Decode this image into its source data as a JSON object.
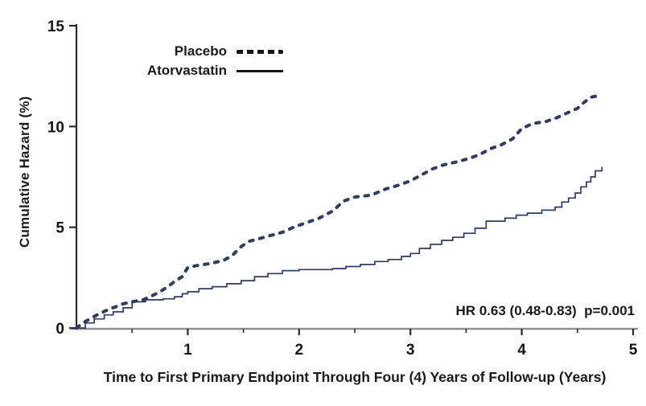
{
  "figure": {
    "y_axis_label": "Cumulative Hazard (%)",
    "x_axis_label": "Time to First Primary Endpoint Through Four (4) Years of Follow-up (Years)",
    "annotation": "HR 0.63 (0.48-0.83)  p=0.001",
    "legend": [
      {
        "label": "Placebo",
        "style": "dashed"
      },
      {
        "label": "Atorvastatin",
        "style": "solid"
      }
    ],
    "colors": {
      "curve": "#2e3c63",
      "axis": "#2b2b2b",
      "baseline": "#8f8f8f",
      "text": "#1a1a1a",
      "legend_swatch": "#141414"
    }
  },
  "chart_data": {
    "type": "line",
    "title": "",
    "xlabel": "Time to First Primary Endpoint Through Four (4) Years of Follow-up (Years)",
    "ylabel": "Cumulative Hazard (%)",
    "xlim": [
      0,
      5
    ],
    "ylim": [
      0,
      15
    ],
    "x_ticks": [
      1,
      2,
      3,
      4,
      5
    ],
    "x_minor_ticks": [
      0.5,
      1.5,
      2.5,
      3.5,
      4.5
    ],
    "y_ticks": [
      0,
      5,
      10,
      15
    ],
    "grid": false,
    "legend_position": "top-left-inside",
    "annotation": "HR 0.63 (0.48-0.83)  p=0.001",
    "series": [
      {
        "name": "Placebo",
        "line": "dashed",
        "step": false,
        "points": [
          [
            0,
            0
          ],
          [
            0.06,
            0.25
          ],
          [
            0.12,
            0.45
          ],
          [
            0.2,
            0.7
          ],
          [
            0.28,
            0.9
          ],
          [
            0.35,
            1.05
          ],
          [
            0.42,
            1.2
          ],
          [
            0.5,
            1.3
          ],
          [
            0.6,
            1.4
          ],
          [
            0.68,
            1.6
          ],
          [
            0.75,
            1.8
          ],
          [
            0.82,
            2.05
          ],
          [
            0.88,
            2.3
          ],
          [
            0.95,
            2.55
          ],
          [
            1.0,
            3.0
          ],
          [
            1.08,
            3.1
          ],
          [
            1.2,
            3.2
          ],
          [
            1.32,
            3.35
          ],
          [
            1.4,
            3.6
          ],
          [
            1.47,
            4.0
          ],
          [
            1.55,
            4.3
          ],
          [
            1.65,
            4.45
          ],
          [
            1.75,
            4.6
          ],
          [
            1.85,
            4.75
          ],
          [
            1.95,
            5.0
          ],
          [
            2.05,
            5.2
          ],
          [
            2.18,
            5.45
          ],
          [
            2.3,
            5.8
          ],
          [
            2.4,
            6.3
          ],
          [
            2.5,
            6.5
          ],
          [
            2.65,
            6.6
          ],
          [
            2.78,
            6.9
          ],
          [
            2.9,
            7.1
          ],
          [
            3.0,
            7.3
          ],
          [
            3.1,
            7.6
          ],
          [
            3.2,
            7.9
          ],
          [
            3.3,
            8.1
          ],
          [
            3.42,
            8.25
          ],
          [
            3.52,
            8.4
          ],
          [
            3.62,
            8.6
          ],
          [
            3.72,
            8.9
          ],
          [
            3.82,
            9.1
          ],
          [
            3.92,
            9.4
          ],
          [
            4.0,
            9.9
          ],
          [
            4.1,
            10.15
          ],
          [
            4.22,
            10.25
          ],
          [
            4.32,
            10.45
          ],
          [
            4.42,
            10.7
          ],
          [
            4.5,
            10.9
          ],
          [
            4.56,
            11.2
          ],
          [
            4.62,
            11.45
          ],
          [
            4.7,
            11.55
          ]
        ]
      },
      {
        "name": "Atorvastatin",
        "line": "solid",
        "step": true,
        "points": [
          [
            0,
            0
          ],
          [
            0.08,
            0.25
          ],
          [
            0.16,
            0.45
          ],
          [
            0.25,
            0.65
          ],
          [
            0.33,
            0.8
          ],
          [
            0.42,
            1.0
          ],
          [
            0.5,
            1.3
          ],
          [
            0.62,
            1.4
          ],
          [
            0.78,
            1.45
          ],
          [
            0.88,
            1.55
          ],
          [
            0.95,
            1.7
          ],
          [
            1.0,
            1.8
          ],
          [
            1.1,
            1.95
          ],
          [
            1.22,
            2.05
          ],
          [
            1.35,
            2.2
          ],
          [
            1.48,
            2.35
          ],
          [
            1.6,
            2.55
          ],
          [
            1.72,
            2.7
          ],
          [
            1.85,
            2.85
          ],
          [
            2.0,
            2.9
          ],
          [
            2.3,
            2.95
          ],
          [
            2.42,
            3.05
          ],
          [
            2.55,
            3.15
          ],
          [
            2.68,
            3.3
          ],
          [
            2.8,
            3.4
          ],
          [
            2.92,
            3.55
          ],
          [
            3.0,
            3.7
          ],
          [
            3.08,
            3.95
          ],
          [
            3.18,
            4.15
          ],
          [
            3.28,
            4.35
          ],
          [
            3.38,
            4.5
          ],
          [
            3.48,
            4.7
          ],
          [
            3.58,
            4.95
          ],
          [
            3.68,
            5.3
          ],
          [
            3.85,
            5.45
          ],
          [
            3.95,
            5.6
          ],
          [
            4.05,
            5.7
          ],
          [
            4.18,
            5.85
          ],
          [
            4.3,
            6.0
          ],
          [
            4.36,
            6.25
          ],
          [
            4.42,
            6.45
          ],
          [
            4.48,
            6.7
          ],
          [
            4.53,
            7.0
          ],
          [
            4.58,
            7.25
          ],
          [
            4.62,
            7.5
          ],
          [
            4.66,
            7.8
          ],
          [
            4.72,
            8.0
          ]
        ]
      }
    ]
  }
}
